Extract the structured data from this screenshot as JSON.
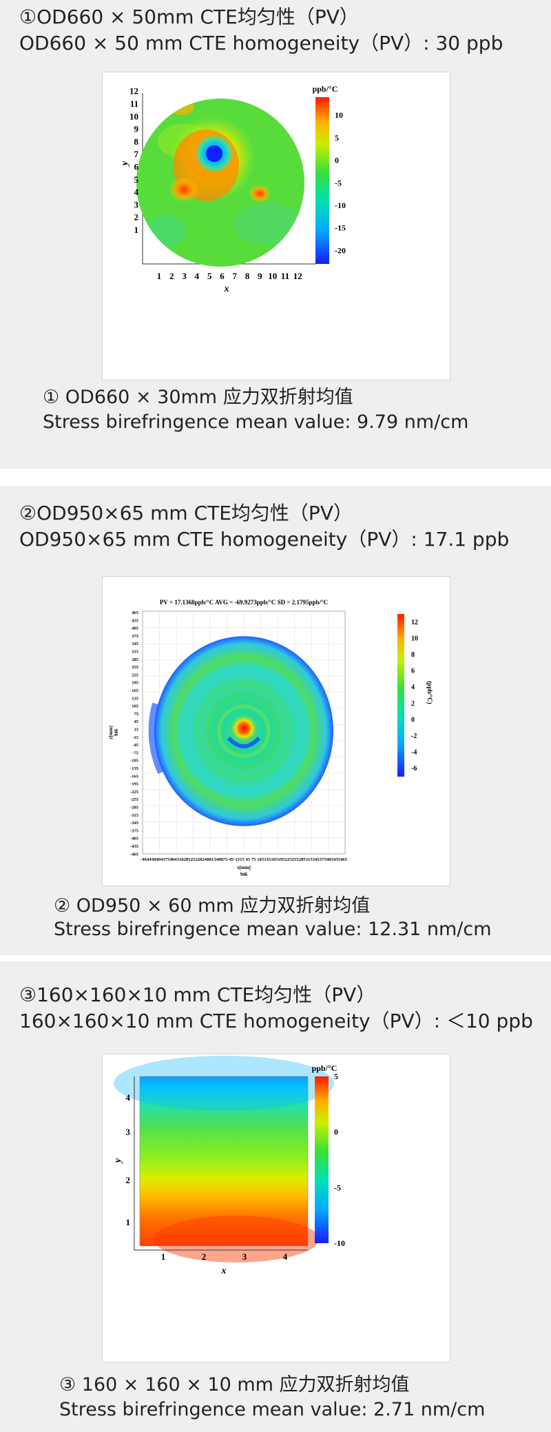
{
  "sections": [
    {
      "title_cn": "①OD660 × 50mm CTE均匀性（PV）",
      "title_en": "OD660 × 50 mm CTE homogeneity（PV）:  30 ppb",
      "caption_cn": "① OD660 × 30mm 应力双折射均值",
      "caption_en": "Stress birefringence mean value:  9.79 nm/cm"
    },
    {
      "title_cn": "②OD950×65 mm CTE均匀性（PV）",
      "title_en": "OD950×65 mm CTE homogeneity（PV）:  17.1 ppb",
      "caption_cn": "② OD950 × 60 mm 应力双折射均值",
      "caption_en": "Stress birefringence mean value:  12.31 nm/cm"
    },
    {
      "title_cn": "③160×160×10 mm CTE均匀性（PV）",
      "title_en": "160×160×10 mm CTE homogeneity（PV）:  ＜10 ppb",
      "caption_cn": "③ 160 × 160 × 10 mm 应力双折射均值",
      "caption_en": "Stress birefringence mean value:  2.71 nm/cm"
    }
  ],
  "chart_data": [
    {
      "type": "heatmap",
      "shape": "circle",
      "xlabel": "x",
      "ylabel": "y",
      "x_ticks": [
        "1",
        "2",
        "3",
        "4",
        "5",
        "6",
        "7",
        "8",
        "9",
        "10",
        "11",
        "12"
      ],
      "y_ticks": [
        "1",
        "2",
        "3",
        "4",
        "5",
        "6",
        "7",
        "8",
        "9",
        "10",
        "11",
        "12"
      ],
      "colorbar_label": "ppb/°C",
      "colorbar_ticks": [
        "10",
        "5",
        "0",
        "-5",
        "-10",
        "-15",
        "-20"
      ],
      "colorbar_range": [
        -23,
        14
      ],
      "description_of_field": "mostly ≈ -5 (green); ring of +5 to +10 around a -20 minimum near x=5.5, y=7.5; hot spots near (3,5) and (9,4.3)"
    },
    {
      "type": "heatmap",
      "shape": "circle",
      "title": "PV = 17.1368ppb/°C   AVG = -69.9273ppb/°C   SD = 2.1795ppb/°C",
      "xlabel": "x[mm]",
      "x_sublabel": "946",
      "ylabel": "y[mm]",
      "y_sublabel": "946",
      "x_ticks_text": "-4644384043754043182852522824881348875-45-1515 45 75 105135165195225255285315345375405435465",
      "y_ticks": [
        "465",
        "435",
        "405",
        "375",
        "345",
        "315",
        "285",
        "255",
        "225",
        "195",
        "165",
        "135",
        "105",
        "75",
        "45",
        "15",
        "-15",
        "-45",
        "-75",
        "-105",
        "-135",
        "-165",
        "-195",
        "-225",
        "-255",
        "-285",
        "-315",
        "-345",
        "-375",
        "-405",
        "-435",
        "-465"
      ],
      "colorbar_label": "(ppb/°C)",
      "colorbar_ticks": [
        "12",
        "10",
        "8",
        "6",
        "4",
        "2",
        "0",
        "-2",
        "-4",
        "-6"
      ],
      "colorbar_range": [
        -7,
        13
      ],
      "description_of_field": "mostly ≈ -2 (green/cyan) with concentric rings; central hot spot ≈ 12 at the centre with a blue crescent below it"
    },
    {
      "type": "heatmap",
      "shape": "square",
      "xlabel": "x",
      "ylabel": "y",
      "x_ticks": [
        "1",
        "2",
        "3",
        "4"
      ],
      "y_ticks": [
        "1",
        "2",
        "3",
        "4"
      ],
      "colorbar_label": "ppb/°C",
      "colorbar_ticks": [
        "5",
        "0",
        "-5",
        "-10"
      ],
      "colorbar_range": [
        -10,
        5
      ],
      "description_of_field": "vertical gradient: ≈ -9 (blue) at top, ≈ 0 (green/yellow) in the middle, ≈ +5 (red) at bottom"
    }
  ]
}
